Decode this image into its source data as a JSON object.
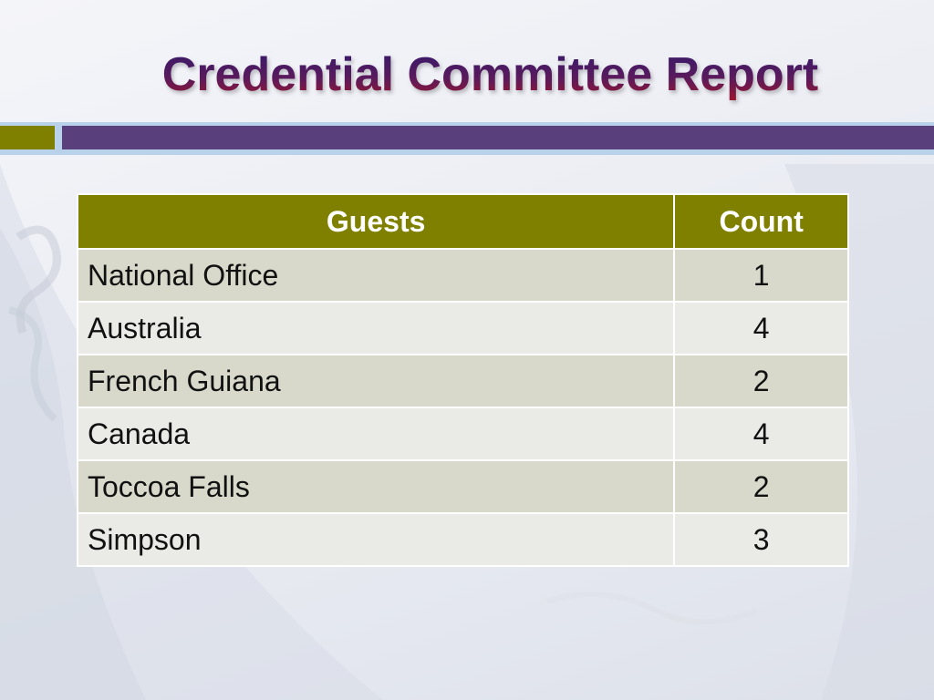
{
  "slide": {
    "title": "Credential Committee Report"
  },
  "table": {
    "headers": {
      "guests": "Guests",
      "count": "Count"
    },
    "rows": [
      {
        "guest": "National Office",
        "count": "1"
      },
      {
        "guest": "Australia",
        "count": "4"
      },
      {
        "guest": "French Guiana",
        "count": "2"
      },
      {
        "guest": "Canada",
        "count": "4"
      },
      {
        "guest": "Toccoa Falls",
        "count": "2"
      },
      {
        "guest": "Simpson",
        "count": "3"
      }
    ]
  },
  "colors": {
    "title_gradient": [
      "#2b1a6e",
      "#5a1a5c",
      "#b0141f"
    ],
    "header_fill": "#808000",
    "row_odd": "#d8d9cb",
    "row_even": "#eaeae6",
    "bar_olive": "#808000",
    "bar_purple": "#59407d",
    "bar_strip": "#b9d2ea"
  }
}
